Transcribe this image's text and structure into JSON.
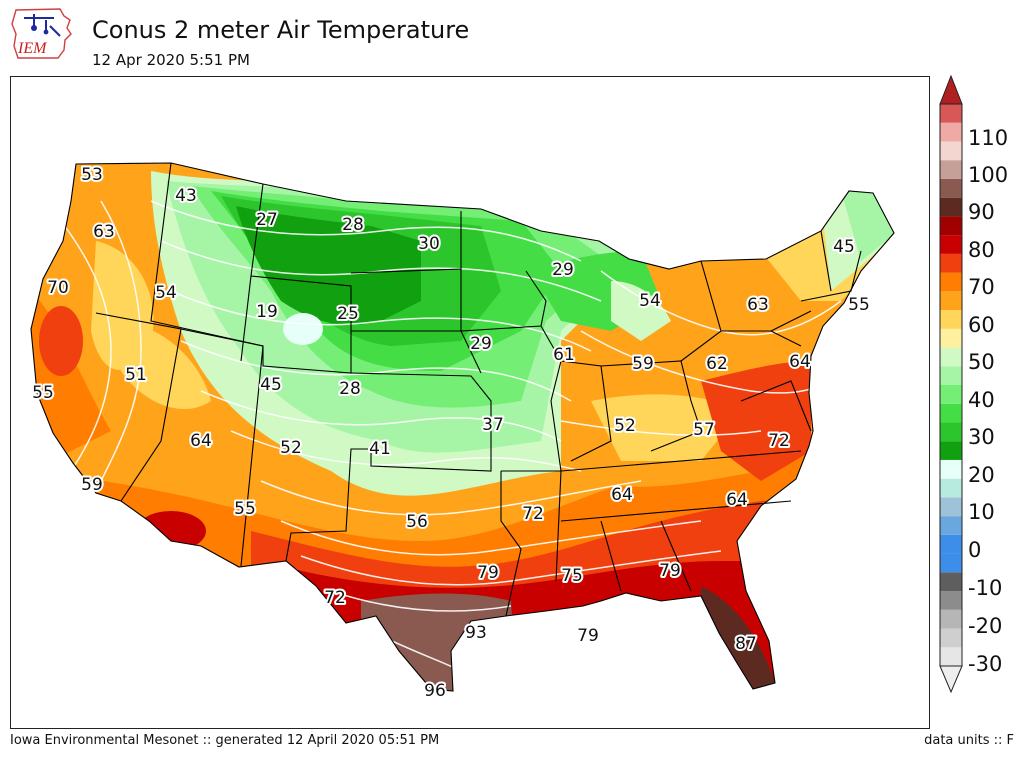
{
  "header": {
    "logo_text": "IEM",
    "title": "Conus 2 meter Air Temperature",
    "timestamp": "12 Apr 2020 5:51 PM"
  },
  "footer": {
    "credit": "Iowa Environmental Mesonet :: generated 12 April 2020 05:51 PM",
    "units": "data units :: F"
  },
  "colorbar": {
    "labels": [
      "110",
      "100",
      "90",
      "80",
      "70",
      "60",
      "50",
      "40",
      "30",
      "20",
      "10",
      "0",
      "-10",
      "-20",
      "-30"
    ],
    "bins": [
      {
        "from": -30,
        "to": -25,
        "color": "#e6e6e6"
      },
      {
        "from": -25,
        "to": -20,
        "color": "#cfcfcf"
      },
      {
        "from": -20,
        "to": -15,
        "color": "#b6b6b6"
      },
      {
        "from": -15,
        "to": -10,
        "color": "#8c8c8c"
      },
      {
        "from": -10,
        "to": -5,
        "color": "#5e5e5e"
      },
      {
        "from": -5,
        "to": 0,
        "color": "#3d8ee8"
      },
      {
        "from": 0,
        "to": 5,
        "color": "#3d8ee8"
      },
      {
        "from": 5,
        "to": 10,
        "color": "#6ba7df"
      },
      {
        "from": 10,
        "to": 15,
        "color": "#9ec3d8"
      },
      {
        "from": 15,
        "to": 20,
        "color": "#b8ebe0"
      },
      {
        "from": 20,
        "to": 25,
        "color": "#e6fff8"
      },
      {
        "from": 25,
        "to": 30,
        "color": "#10a010"
      },
      {
        "from": 30,
        "to": 35,
        "color": "#2cc52c"
      },
      {
        "from": 35,
        "to": 40,
        "color": "#45dd45"
      },
      {
        "from": 40,
        "to": 45,
        "color": "#75ee75"
      },
      {
        "from": 45,
        "to": 50,
        "color": "#a6f5a6"
      },
      {
        "from": 50,
        "to": 55,
        "color": "#d0f9c4"
      },
      {
        "from": 55,
        "to": 60,
        "color": "#fff0a0"
      },
      {
        "from": 60,
        "to": 65,
        "color": "#ffd55a"
      },
      {
        "from": 65,
        "to": 70,
        "color": "#ffa31a"
      },
      {
        "from": 70,
        "to": 75,
        "color": "#ff7d00"
      },
      {
        "from": 75,
        "to": 80,
        "color": "#f04010"
      },
      {
        "from": 80,
        "to": 85,
        "color": "#c80000"
      },
      {
        "from": 85,
        "to": 90,
        "color": "#a00000"
      },
      {
        "from": 90,
        "to": 95,
        "color": "#5c2a20"
      },
      {
        "from": 95,
        "to": 100,
        "color": "#8a5a50"
      },
      {
        "from": 100,
        "to": 105,
        "color": "#c4a098"
      },
      {
        "from": 105,
        "to": 110,
        "color": "#f2d6cf"
      },
      {
        "from": 110,
        "to": 115,
        "color": "#f0aaa6"
      },
      {
        "from": 115,
        "to": 120,
        "color": "#d85858"
      }
    ],
    "under_color": "#eeeeee",
    "over_color": "#b02020"
  },
  "map": {
    "station_labels": [
      {
        "label": "53"
      },
      {
        "label": "43"
      },
      {
        "label": "27"
      },
      {
        "label": "28"
      },
      {
        "label": "30"
      },
      {
        "label": "45"
      },
      {
        "label": "63"
      },
      {
        "label": "29"
      },
      {
        "label": "54"
      },
      {
        "label": "70"
      },
      {
        "label": "54"
      },
      {
        "label": "19"
      },
      {
        "label": "25"
      },
      {
        "label": "63"
      },
      {
        "label": "55"
      },
      {
        "label": "29"
      },
      {
        "label": "61"
      },
      {
        "label": "59"
      },
      {
        "label": "62"
      },
      {
        "label": "64"
      },
      {
        "label": "51"
      },
      {
        "label": "55"
      },
      {
        "label": "45"
      },
      {
        "label": "28"
      },
      {
        "label": "37"
      },
      {
        "label": "52"
      },
      {
        "label": "57"
      },
      {
        "label": "64"
      },
      {
        "label": "52"
      },
      {
        "label": "41"
      },
      {
        "label": "72"
      },
      {
        "label": "59"
      },
      {
        "label": "55"
      },
      {
        "label": "64"
      },
      {
        "label": "64"
      },
      {
        "label": "56"
      },
      {
        "label": "72"
      },
      {
        "label": "79"
      },
      {
        "label": "75"
      },
      {
        "label": "79"
      },
      {
        "label": "72"
      },
      {
        "label": "93"
      },
      {
        "label": "79"
      },
      {
        "label": "87"
      },
      {
        "label": "96"
      }
    ]
  }
}
